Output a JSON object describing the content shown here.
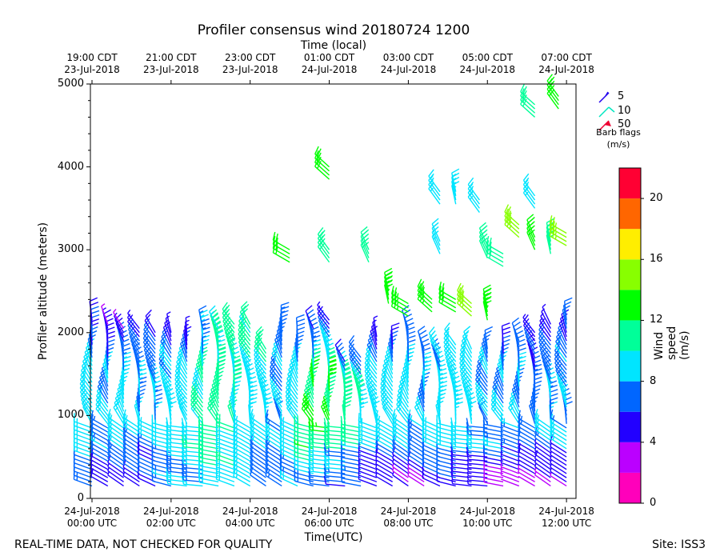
{
  "title": "Profiler consensus wind 20180724 1200",
  "top_axis_label": "Time (local)",
  "bottom_axis_label": "Time(UTC)",
  "y_axis_label": "Profiler altitude (meters)",
  "colorbar_label": "Wind speed (m/s)",
  "footer_left": "REAL-TIME DATA, NOT CHECKED FOR QUALITY",
  "footer_right": "Site: ISS3",
  "legend": {
    "title_line1": "Barb flags",
    "title_line2": "(m/s)",
    "items": [
      {
        "label": "5",
        "color": "#2200ee"
      },
      {
        "label": "10",
        "color": "#00e7c0"
      },
      {
        "label": "50",
        "color": "#ee0033"
      }
    ]
  },
  "chart_data": {
    "type": "wind-barb profile",
    "title": "Profiler consensus wind 20180724 1200",
    "xlabel": "Time(UTC)",
    "ylabel": "Profiler altitude (meters)",
    "x_range_hours_utc": [
      0,
      12.2
    ],
    "ylim": [
      0,
      5000
    ],
    "yticks": [
      0,
      1000,
      2000,
      3000,
      4000,
      5000
    ],
    "xticks_utc": [
      {
        "line1": "24-Jul-2018",
        "line2": "00:00 UTC",
        "hour": 0
      },
      {
        "line1": "24-Jul-2018",
        "line2": "02:00 UTC",
        "hour": 2
      },
      {
        "line1": "24-Jul-2018",
        "line2": "04:00 UTC",
        "hour": 4
      },
      {
        "line1": "24-Jul-2018",
        "line2": "06:00 UTC",
        "hour": 6
      },
      {
        "line1": "24-Jul-2018",
        "line2": "08:00 UTC",
        "hour": 8
      },
      {
        "line1": "24-Jul-2018",
        "line2": "10:00 UTC",
        "hour": 10
      },
      {
        "line1": "24-Jul-2018",
        "line2": "12:00 UTC",
        "hour": 12
      }
    ],
    "xticks_local": [
      {
        "line1": "19:00 CDT",
        "line2": "23-Jul-2018",
        "hour": 0
      },
      {
        "line1": "21:00 CDT",
        "line2": "23-Jul-2018",
        "hour": 2
      },
      {
        "line1": "23:00 CDT",
        "line2": "23-Jul-2018",
        "hour": 4
      },
      {
        "line1": "01:00 CDT",
        "line2": "24-Jul-2018",
        "hour": 6
      },
      {
        "line1": "03:00 CDT",
        "line2": "24-Jul-2018",
        "hour": 8
      },
      {
        "line1": "05:00 CDT",
        "line2": "24-Jul-2018",
        "hour": 10
      },
      {
        "line1": "07:00 CDT",
        "line2": "24-Jul-2018",
        "hour": 12
      }
    ],
    "colorbar": {
      "range": [
        0,
        22
      ],
      "ticks": [
        0,
        4,
        8,
        12,
        16,
        20
      ],
      "bins": [
        {
          "from": 0,
          "to": 2,
          "color": "#ff00bb"
        },
        {
          "from": 2,
          "to": 4,
          "color": "#bb00ff"
        },
        {
          "from": 4,
          "to": 6,
          "color": "#2200ff"
        },
        {
          "from": 6,
          "to": 8,
          "color": "#0066ff"
        },
        {
          "from": 8,
          "to": 10,
          "color": "#00e5ff"
        },
        {
          "from": 10,
          "to": 12,
          "color": "#00ff99"
        },
        {
          "from": 12,
          "to": 14,
          "color": "#00ff00"
        },
        {
          "from": 14,
          "to": 16,
          "color": "#88ff00"
        },
        {
          "from": 16,
          "to": 18,
          "color": "#ffee00"
        },
        {
          "from": 18,
          "to": 20,
          "color": "#ff6600"
        },
        {
          "from": 20,
          "to": 22,
          "color": "#ff0033"
        }
      ]
    },
    "profiles": [
      {
        "hour": 0.0,
        "top": 2150,
        "spd_low": 7,
        "spd_mid": 9,
        "spd_high": 5
      },
      {
        "hour": 0.4,
        "top": 2100,
        "spd_low": 5,
        "spd_mid": 8,
        "spd_high": 4
      },
      {
        "hour": 0.8,
        "top": 2050,
        "spd_low": 5,
        "spd_mid": 9,
        "spd_high": 4
      },
      {
        "hour": 1.2,
        "top": 2050,
        "spd_low": 5,
        "spd_mid": 8,
        "spd_high": 5
      },
      {
        "hour": 1.6,
        "top": 2000,
        "spd_low": 5,
        "spd_mid": 8,
        "spd_high": 6
      },
      {
        "hour": 2.0,
        "top": 2000,
        "spd_low": 7,
        "spd_mid": 9,
        "spd_high": 5
      },
      {
        "hour": 2.4,
        "top": 1950,
        "spd_low": 8,
        "spd_mid": 9,
        "spd_high": 5
      },
      {
        "hour": 2.8,
        "top": 2050,
        "spd_low": 8,
        "spd_mid": 10,
        "spd_high": 7
      },
      {
        "hour": 3.2,
        "top": 2050,
        "spd_low": 9,
        "spd_mid": 11,
        "spd_high": 10
      },
      {
        "hour": 3.6,
        "top": 2100,
        "spd_low": 9,
        "spd_mid": 10,
        "spd_high": 11
      },
      {
        "hour": 4.0,
        "top": 2100,
        "spd_low": 9,
        "spd_mid": 9,
        "spd_high": 11
      },
      {
        "hour": 4.4,
        "top": 1800,
        "spd_low": 6,
        "spd_mid": 9,
        "spd_high": 10
      },
      {
        "hour": 4.8,
        "top": 2100,
        "spd_low": 7,
        "spd_mid": 8,
        "spd_high": 7
      },
      {
        "hour": 5.2,
        "top": 1950,
        "spd_low": 8,
        "spd_mid": 9,
        "spd_high": 6
      },
      {
        "hour": 5.6,
        "top": 2050,
        "spd_low": 8,
        "spd_mid": 12,
        "spd_high": 5
      },
      {
        "hour": 6.0,
        "top": 2150,
        "spd_low": 7,
        "spd_mid": 12,
        "spd_high": 5
      },
      {
        "hour": 6.4,
        "top": 1650,
        "spd_low": 6,
        "spd_mid": 11,
        "spd_high": 6
      },
      {
        "hour": 6.8,
        "top": 1700,
        "spd_low": 6,
        "spd_mid": 10,
        "spd_high": 6
      },
      {
        "hour": 7.2,
        "top": 1950,
        "spd_low": 4,
        "spd_mid": 9,
        "spd_high": 5
      },
      {
        "hour": 7.6,
        "top": 1850,
        "spd_low": 4,
        "spd_mid": 9,
        "spd_high": 6
      },
      {
        "hour": 8.0,
        "top": 2050,
        "spd_low": 4,
        "spd_mid": 9,
        "spd_high": 6
      },
      {
        "hour": 8.4,
        "top": 1800,
        "spd_low": 4,
        "spd_mid": 8,
        "spd_high": 7
      },
      {
        "hour": 8.8,
        "top": 1800,
        "spd_low": 5,
        "spd_mid": 9,
        "spd_high": 8
      },
      {
        "hour": 9.2,
        "top": 1850,
        "spd_low": 5,
        "spd_mid": 9,
        "spd_high": 9
      },
      {
        "hour": 9.6,
        "top": 1800,
        "spd_low": 4,
        "spd_mid": 9,
        "spd_high": 9
      },
      {
        "hour": 10.0,
        "top": 1800,
        "spd_low": 4,
        "spd_mid": 8,
        "spd_high": 7
      },
      {
        "hour": 10.4,
        "top": 1850,
        "spd_low": 3,
        "spd_mid": 8,
        "spd_high": 6
      },
      {
        "hour": 10.8,
        "top": 1900,
        "spd_low": 3,
        "spd_mid": 8,
        "spd_high": 6
      },
      {
        "hour": 11.2,
        "top": 2000,
        "spd_low": 3,
        "spd_mid": 7,
        "spd_high": 5
      },
      {
        "hour": 11.6,
        "top": 2100,
        "spd_low": 3,
        "spd_mid": 8,
        "spd_high": 5
      },
      {
        "hour": 12.0,
        "top": 2150,
        "spd_low": 3,
        "spd_mid": 8,
        "spd_high": 6
      }
    ],
    "upper_barbs": [
      {
        "hour": 5.0,
        "alt": 3000,
        "spd": 12
      },
      {
        "hour": 6.0,
        "alt": 4000,
        "spd": 12
      },
      {
        "hour": 6.0,
        "alt": 3000,
        "spd": 11
      },
      {
        "hour": 7.0,
        "alt": 3000,
        "spd": 10
      },
      {
        "hour": 7.5,
        "alt": 2500,
        "spd": 13
      },
      {
        "hour": 8.0,
        "alt": 2350,
        "spd": 13
      },
      {
        "hour": 8.6,
        "alt": 2400,
        "spd": 13
      },
      {
        "hour": 8.8,
        "alt": 3700,
        "spd": 9
      },
      {
        "hour": 8.8,
        "alt": 3100,
        "spd": 9
      },
      {
        "hour": 9.2,
        "alt": 3700,
        "spd": 9
      },
      {
        "hour": 9.2,
        "alt": 2400,
        "spd": 12
      },
      {
        "hour": 9.6,
        "alt": 2350,
        "spd": 14
      },
      {
        "hour": 9.8,
        "alt": 3600,
        "spd": 9
      },
      {
        "hour": 10.0,
        "alt": 3050,
        "spd": 11
      },
      {
        "hour": 10.0,
        "alt": 2300,
        "spd": 13
      },
      {
        "hour": 10.4,
        "alt": 2950,
        "spd": 10
      },
      {
        "hour": 10.8,
        "alt": 3300,
        "spd": 14
      },
      {
        "hour": 11.2,
        "alt": 3650,
        "spd": 9
      },
      {
        "hour": 11.2,
        "alt": 3150,
        "spd": 12
      },
      {
        "hour": 11.6,
        "alt": 3100,
        "spd": 10
      },
      {
        "hour": 12.0,
        "alt": 3200,
        "spd": 14
      },
      {
        "hour": 11.2,
        "alt": 4750,
        "spd": 11
      },
      {
        "hour": 11.8,
        "alt": 4850,
        "spd": 12
      }
    ]
  }
}
